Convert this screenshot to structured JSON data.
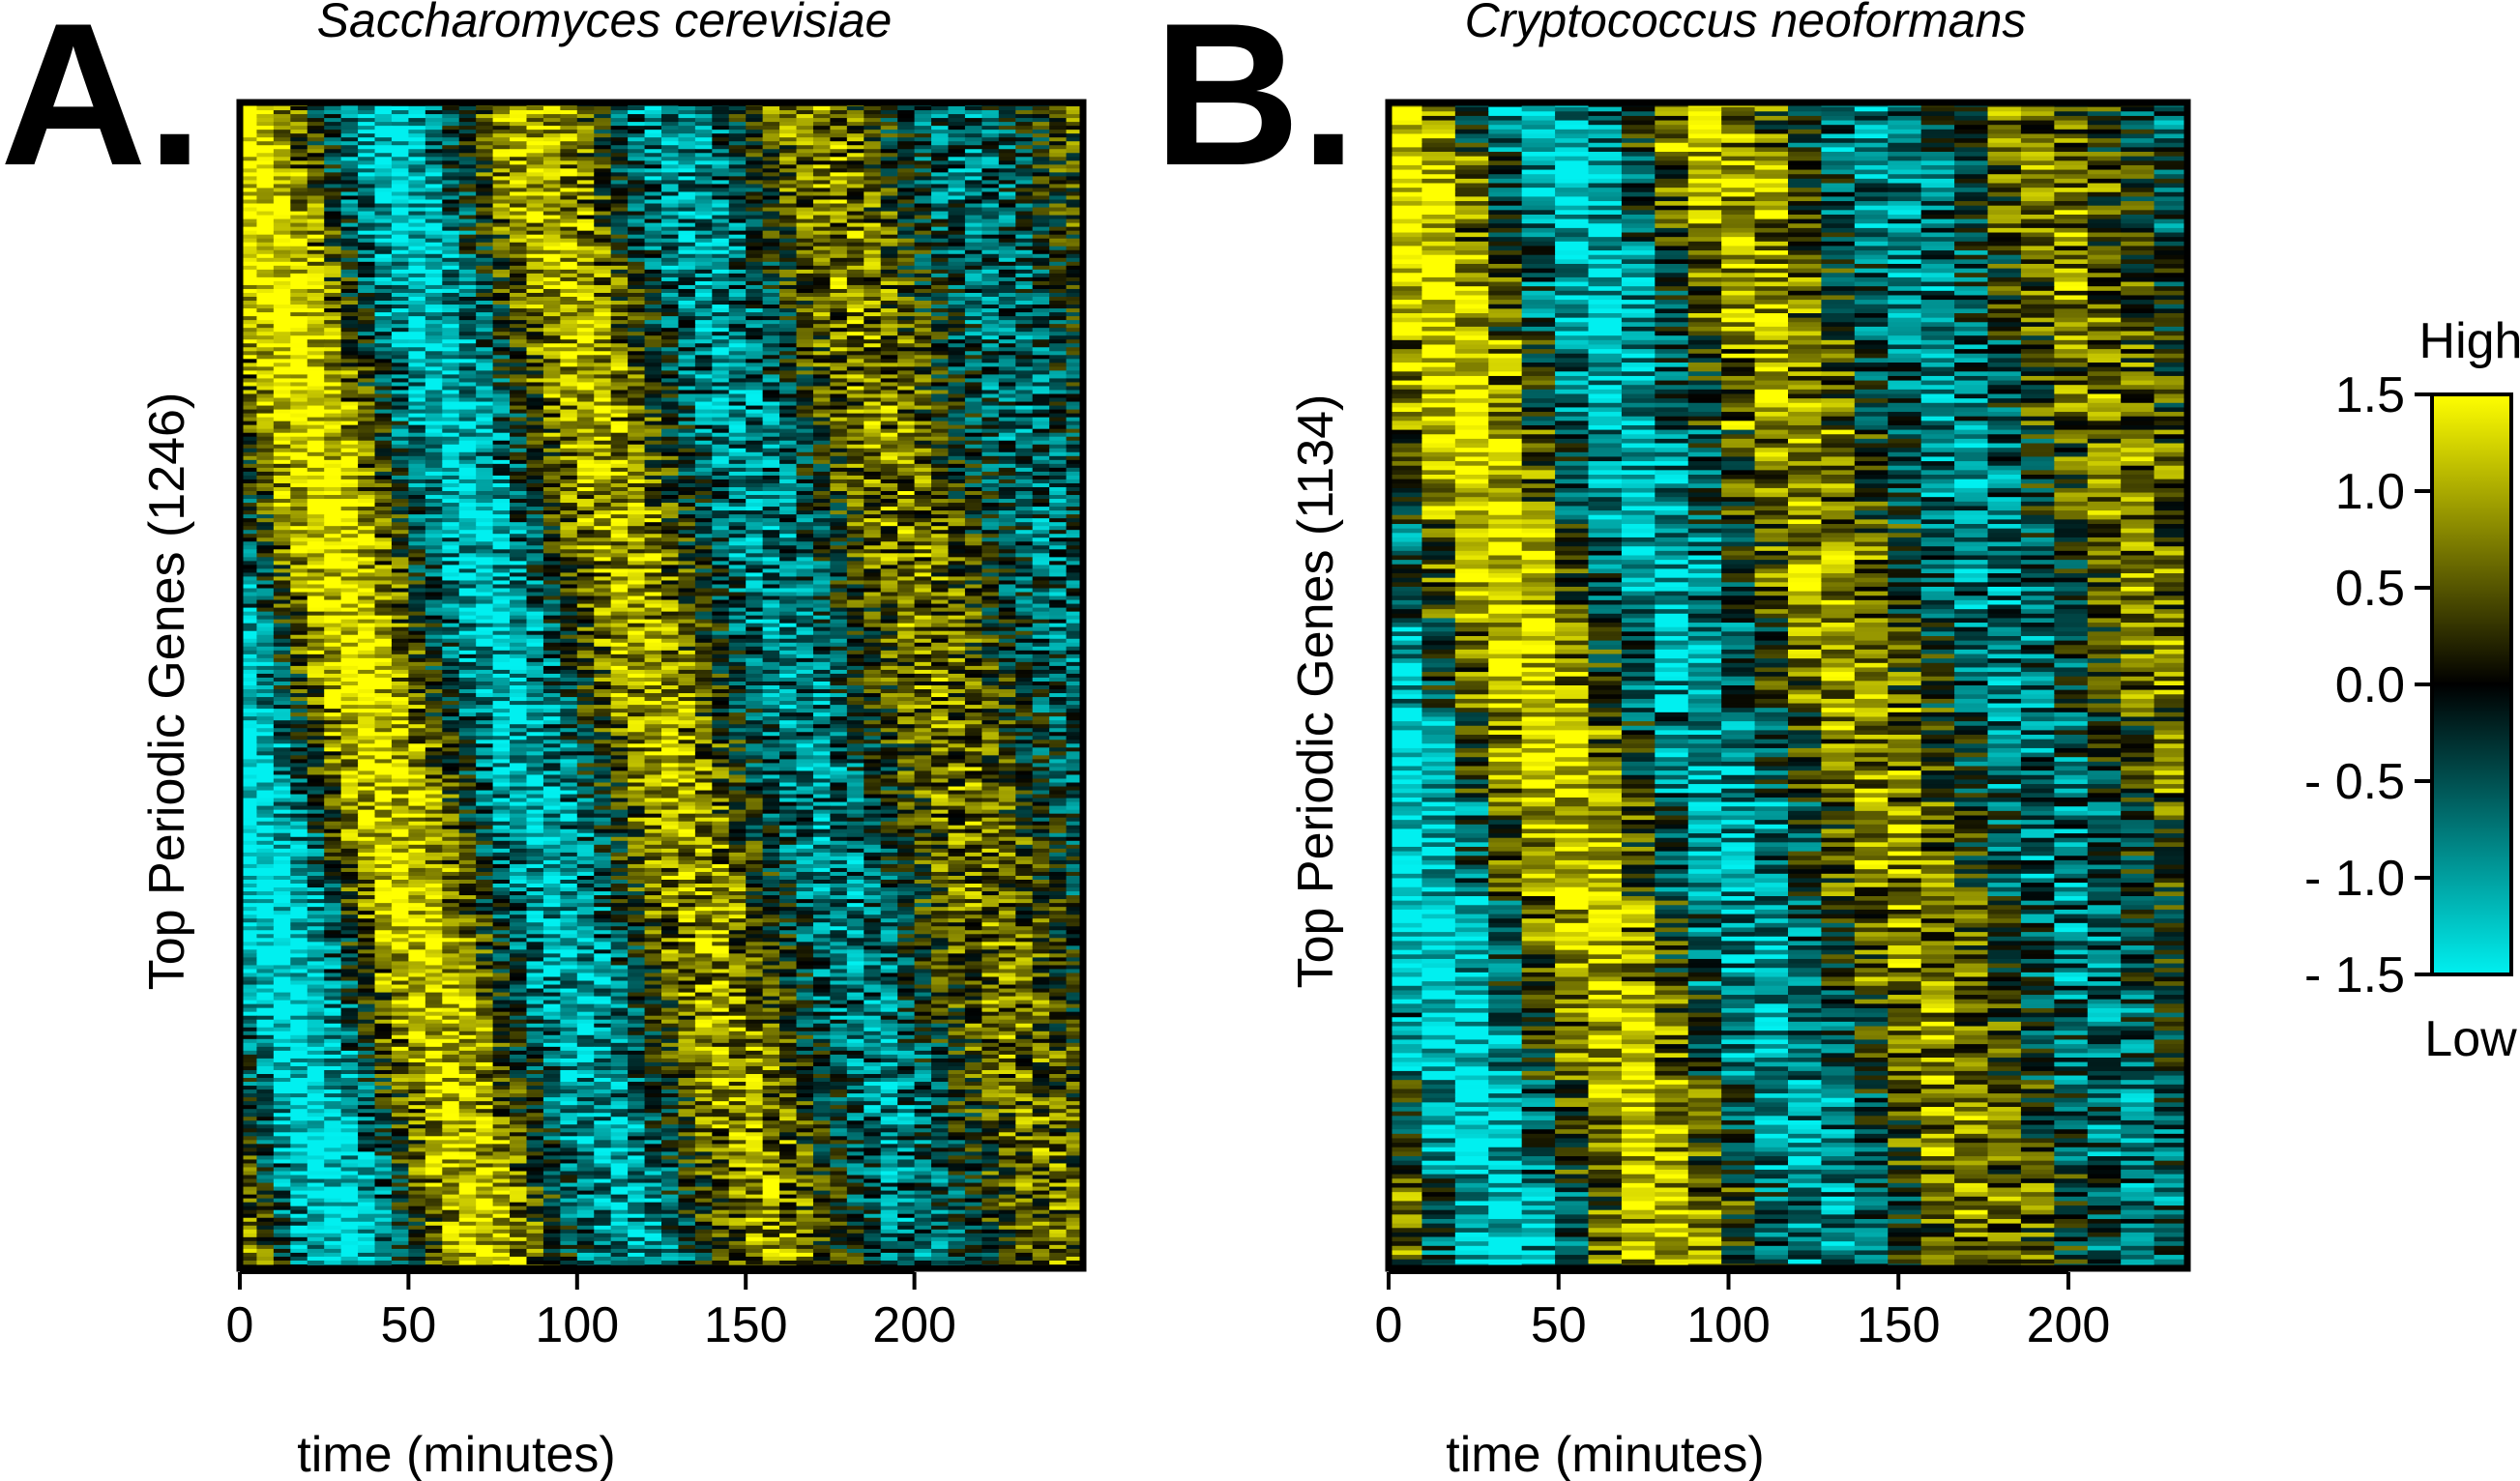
{
  "panels": [
    {
      "label": "A.",
      "title": "Saccharomyces cerevisiae",
      "xlabel": "time (minutes)",
      "ylabel": "Top Periodic Genes (1246)"
    },
    {
      "label": "B.",
      "title": "Cryptococcus neoformans",
      "xlabel": "time (minutes)",
      "ylabel": "Top Periodic Genes (1134)"
    }
  ],
  "colorbar": {
    "high_label": "High",
    "low_label": "Low",
    "ticks": [
      "1.5",
      "1.0",
      "0.5",
      "0.0",
      "- 0.5",
      "- 1.0",
      "- 1.5"
    ],
    "tick_values": [
      1.5,
      1.0,
      0.5,
      0.0,
      -0.5,
      -1.0,
      -1.5
    ],
    "colors": {
      "low": "#00f0f0",
      "mid": "#000000",
      "high": "#ffff00"
    }
  },
  "chart_data": [
    {
      "type": "heatmap",
      "title": "Saccharomyces cerevisiae",
      "xlabel": "time (minutes)",
      "ylabel": "Top Periodic Genes (1246)",
      "x_ticks": [
        0,
        50,
        100,
        150,
        200
      ],
      "x_tick_labels": [
        "0",
        "50",
        "100",
        "150",
        "200"
      ],
      "xlim": [
        0,
        250
      ],
      "n_genes": 1246,
      "n_timepoints": 50,
      "value_range": [
        -1.5,
        1.5
      ],
      "colormap": [
        "#00f0f0",
        "#000000",
        "#ffff00"
      ],
      "pattern": "periodic expression; genes ordered by peak phase (diagonal yellow band from 0 to ~75 min, second cycle ~80-150 min)",
      "first_cycle_peak_minutes": [
        0,
        75
      ],
      "period_minutes": 85
    },
    {
      "type": "heatmap",
      "title": "Cryptococcus neoformans",
      "xlabel": "time (minutes)",
      "ylabel": "Top Periodic Genes (1134)",
      "x_ticks": [
        0,
        50,
        100,
        150,
        200
      ],
      "x_tick_labels": [
        "0",
        "50",
        "100",
        "150",
        "200"
      ],
      "xlim": [
        0,
        235
      ],
      "n_genes": 1134,
      "n_timepoints": 24,
      "value_range": [
        -1.5,
        1.5
      ],
      "colormap": [
        "#00f0f0",
        "#000000",
        "#ffff00"
      ],
      "pattern": "periodic expression; genes ordered by peak phase (stepwise yellow band from 0 to ~85 min, second cycle ~90-160 min)",
      "first_cycle_peak_minutes": [
        0,
        85
      ],
      "period_minutes": 95
    }
  ]
}
